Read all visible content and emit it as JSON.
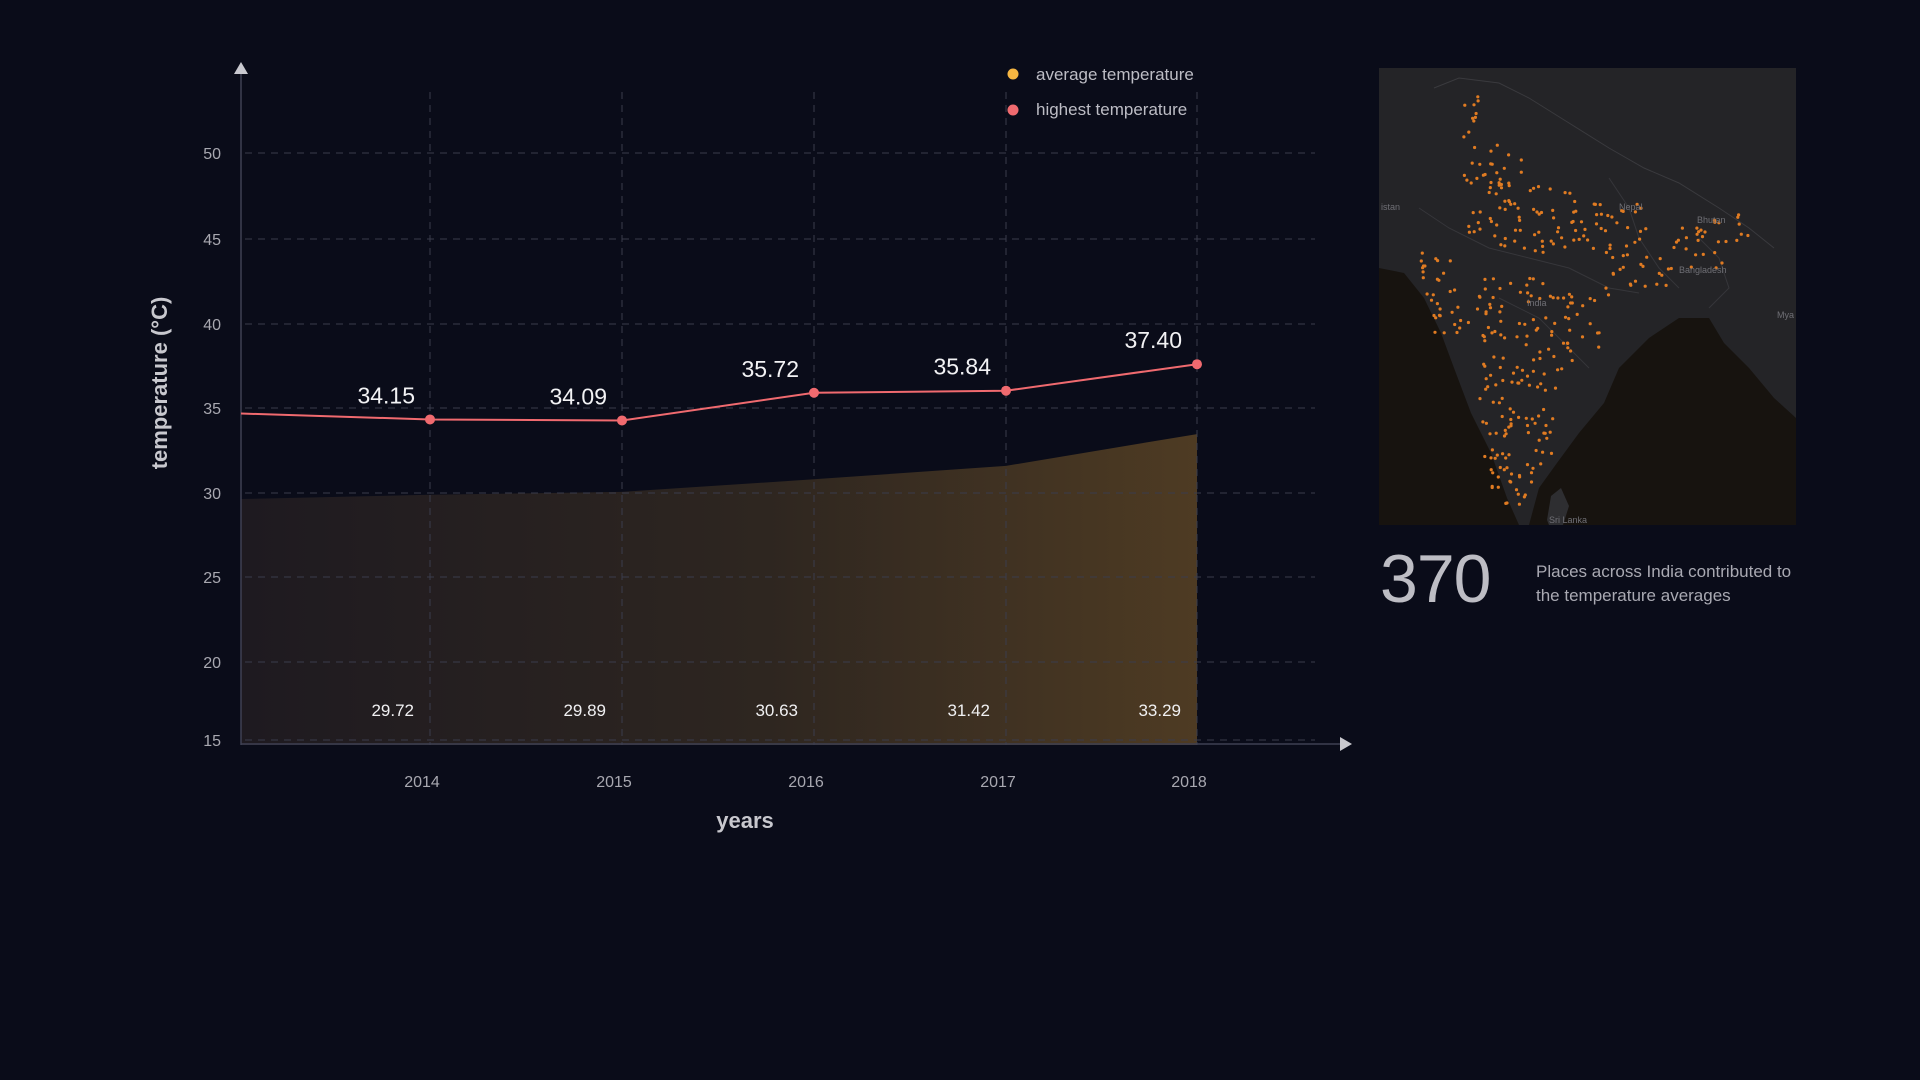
{
  "chart_data": {
    "type": "area+line",
    "xlabel": "years",
    "ylabel": "temperature (°C)",
    "ylim": [
      15,
      55
    ],
    "yticks": [
      15,
      20,
      25,
      30,
      35,
      40,
      45,
      50
    ],
    "categories": [
      "2014",
      "2015",
      "2016",
      "2017",
      "2018"
    ],
    "series": [
      {
        "name": "average temperature",
        "type": "area",
        "color": "#f5b642",
        "values": [
          29.72,
          29.89,
          30.63,
          31.42,
          33.29
        ],
        "labels": [
          "29.72",
          "29.89",
          "30.63",
          "31.42",
          "33.29"
        ]
      },
      {
        "name": "highest temperature",
        "type": "line",
        "color": "#f06a6f",
        "values": [
          34.15,
          34.09,
          35.72,
          35.84,
          37.4
        ],
        "labels": [
          "34.15",
          "34.09",
          "35.72",
          "35.84",
          "37.40"
        ]
      }
    ],
    "legend_position": "top-right"
  },
  "map": {
    "labels": [
      "istan",
      "Nepal",
      "Bhutan",
      "Bangladesh",
      "India",
      "Mya (Bur",
      "Sri Lanka"
    ],
    "dot_color": "#e07b22"
  },
  "summary": {
    "count": "370",
    "description": "Places across India contributed to the temperature averages"
  }
}
